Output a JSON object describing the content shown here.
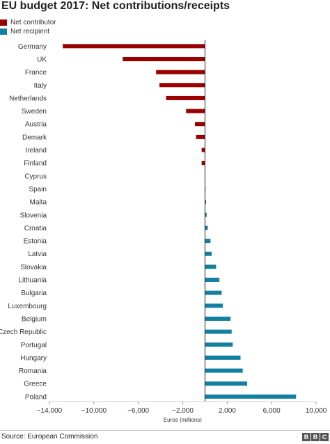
{
  "title": "EU budget 2017: Net contributions/receipts",
  "legend": [
    {
      "label": "Net contributor",
      "color": "#990000"
    },
    {
      "label": "Net recipient",
      "color": "#1380a1"
    }
  ],
  "source": "Source: European Commission",
  "logo_text": "BBC",
  "chart_data": {
    "type": "bar",
    "orientation": "horizontal",
    "xlabel": "Euros (millions)",
    "xlim": [
      -14000,
      10000
    ],
    "xticks": [
      -14000,
      -10000,
      -6000,
      -2000,
      2000,
      6000,
      10000
    ],
    "xtick_labels": [
      "−14,000",
      "−10,000",
      "−6,000",
      "−2,000",
      "2,000",
      "6,000",
      "10,000"
    ],
    "grid": false,
    "legend_position": "top-left",
    "colors": {
      "negative": "#990000",
      "positive": "#1380a1"
    },
    "categories": [
      "Germany",
      "UK",
      "France",
      "Italy",
      "Netherlands",
      "Sweden",
      "Austria",
      "Demark",
      "Ireland",
      "Finland",
      "Cyprus",
      "Spain",
      "Malta",
      "Slovenia",
      "Croatia",
      "Estonia",
      "Latvia",
      "Slovakia",
      "Lithuania",
      "Bulgaria",
      "Luxembourg",
      "Belgium",
      "Czech Republic",
      "Portugal",
      "Hungary",
      "Romania",
      "Greece",
      "Poland"
    ],
    "values": [
      -12800,
      -7400,
      -4400,
      -4100,
      -3500,
      -1700,
      -900,
      -800,
      -300,
      -300,
      -20,
      20,
      100,
      150,
      250,
      500,
      600,
      1000,
      1300,
      1500,
      1600,
      2300,
      2400,
      2500,
      3200,
      3400,
      3800,
      8200
    ]
  }
}
